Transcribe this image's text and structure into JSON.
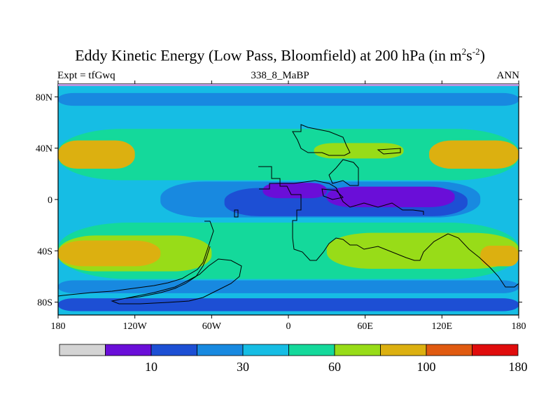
{
  "chart_data": {
    "type": "heatmap",
    "title_main": "Eddy Kinetic Energy (Low Pass, Bloomfield) at 200 hPa (in m",
    "title_sup1": "2",
    "title_mid": "s",
    "title_sup2": "-2",
    "title_end": ")",
    "left_label": "Expt = tfGwq",
    "center_label": "338_8_MaBP",
    "right_label": "ANN",
    "x_range": [
      -180,
      180
    ],
    "y_range": [
      -90,
      90
    ],
    "x_ticks": [
      {
        "value": -180,
        "label": "180"
      },
      {
        "value": -120,
        "label": "120W"
      },
      {
        "value": -60,
        "label": "60W"
      },
      {
        "value": 0,
        "label": "0"
      },
      {
        "value": 60,
        "label": "60E"
      },
      {
        "value": 120,
        "label": "120E"
      },
      {
        "value": 180,
        "label": "180"
      }
    ],
    "y_ticks": [
      {
        "value": 80,
        "label": "80N"
      },
      {
        "value": 40,
        "label": "40N"
      },
      {
        "value": 0,
        "label": "0"
      },
      {
        "value": -40,
        "label": "40S"
      },
      {
        "value": -80,
        "label": "80S"
      }
    ],
    "colorbar": {
      "colors": [
        "#d4d4d4",
        "#6a0ed8",
        "#1d4fd4",
        "#1889e0",
        "#16bde4",
        "#14d99b",
        "#98dc18",
        "#dcb010",
        "#e05a10",
        "#e00c0c"
      ],
      "tick_labels": [
        {
          "index": 1,
          "label": "10"
        },
        {
          "index": 3,
          "label": "30"
        },
        {
          "index": 5,
          "label": "60"
        },
        {
          "index": 7,
          "label": "100"
        },
        {
          "index": 9,
          "label": "180"
        }
      ]
    },
    "background_level": "#16bde4",
    "contour_bands": [
      {
        "level": "#14d99b",
        "lat_center": 35,
        "lat_halfwidth": 20,
        "lon_from": -180,
        "lon_to": 180
      },
      {
        "level": "#dcb010",
        "lat_center": 35,
        "lat_halfwidth": 11,
        "lon_from": -180,
        "lon_to": -120
      },
      {
        "level": "#dcb010",
        "lat_center": 35,
        "lat_halfwidth": 11,
        "lon_from": 110,
        "lon_to": 180
      },
      {
        "level": "#98dc18",
        "lat_center": 38,
        "lat_halfwidth": 6,
        "lon_from": 20,
        "lon_to": 90
      },
      {
        "level": "#14d99b",
        "lat_center": -40,
        "lat_halfwidth": 22,
        "lon_from": -180,
        "lon_to": 180
      },
      {
        "level": "#98dc18",
        "lat_center": -42,
        "lat_halfwidth": 14,
        "lon_from": -180,
        "lon_to": -60
      },
      {
        "level": "#dcb010",
        "lat_center": -42,
        "lat_halfwidth": 10,
        "lon_from": -180,
        "lon_to": -100
      },
      {
        "level": "#98dc18",
        "lat_center": -40,
        "lat_halfwidth": 14,
        "lon_from": 30,
        "lon_to": 180
      },
      {
        "level": "#dcb010",
        "lat_center": -44,
        "lat_halfwidth": 8,
        "lon_from": 150,
        "lon_to": 180
      },
      {
        "level": "#1889e0",
        "lat_center": 0,
        "lat_halfwidth": 14,
        "lon_from": -100,
        "lon_to": 150
      },
      {
        "level": "#1d4fd4",
        "lat_center": -2,
        "lat_halfwidth": 11,
        "lon_from": -50,
        "lon_to": 140
      },
      {
        "level": "#6a0ed8",
        "lat_center": 7,
        "lat_halfwidth": 6,
        "lon_from": -20,
        "lon_to": 30
      },
      {
        "level": "#6a0ed8",
        "lat_center": 2,
        "lat_halfwidth": 8,
        "lon_from": 30,
        "lon_to": 130
      },
      {
        "level": "#1889e0",
        "lat_center": -68,
        "lat_halfwidth": 5,
        "lon_from": -180,
        "lon_to": 180
      },
      {
        "level": "#1d4fd4",
        "lat_center": -82,
        "lat_halfwidth": 5,
        "lon_from": -180,
        "lon_to": 180
      },
      {
        "level": "#1889e0",
        "lat_center": 78,
        "lat_halfwidth": 5,
        "lon_from": -180,
        "lon_to": 180
      }
    ]
  }
}
